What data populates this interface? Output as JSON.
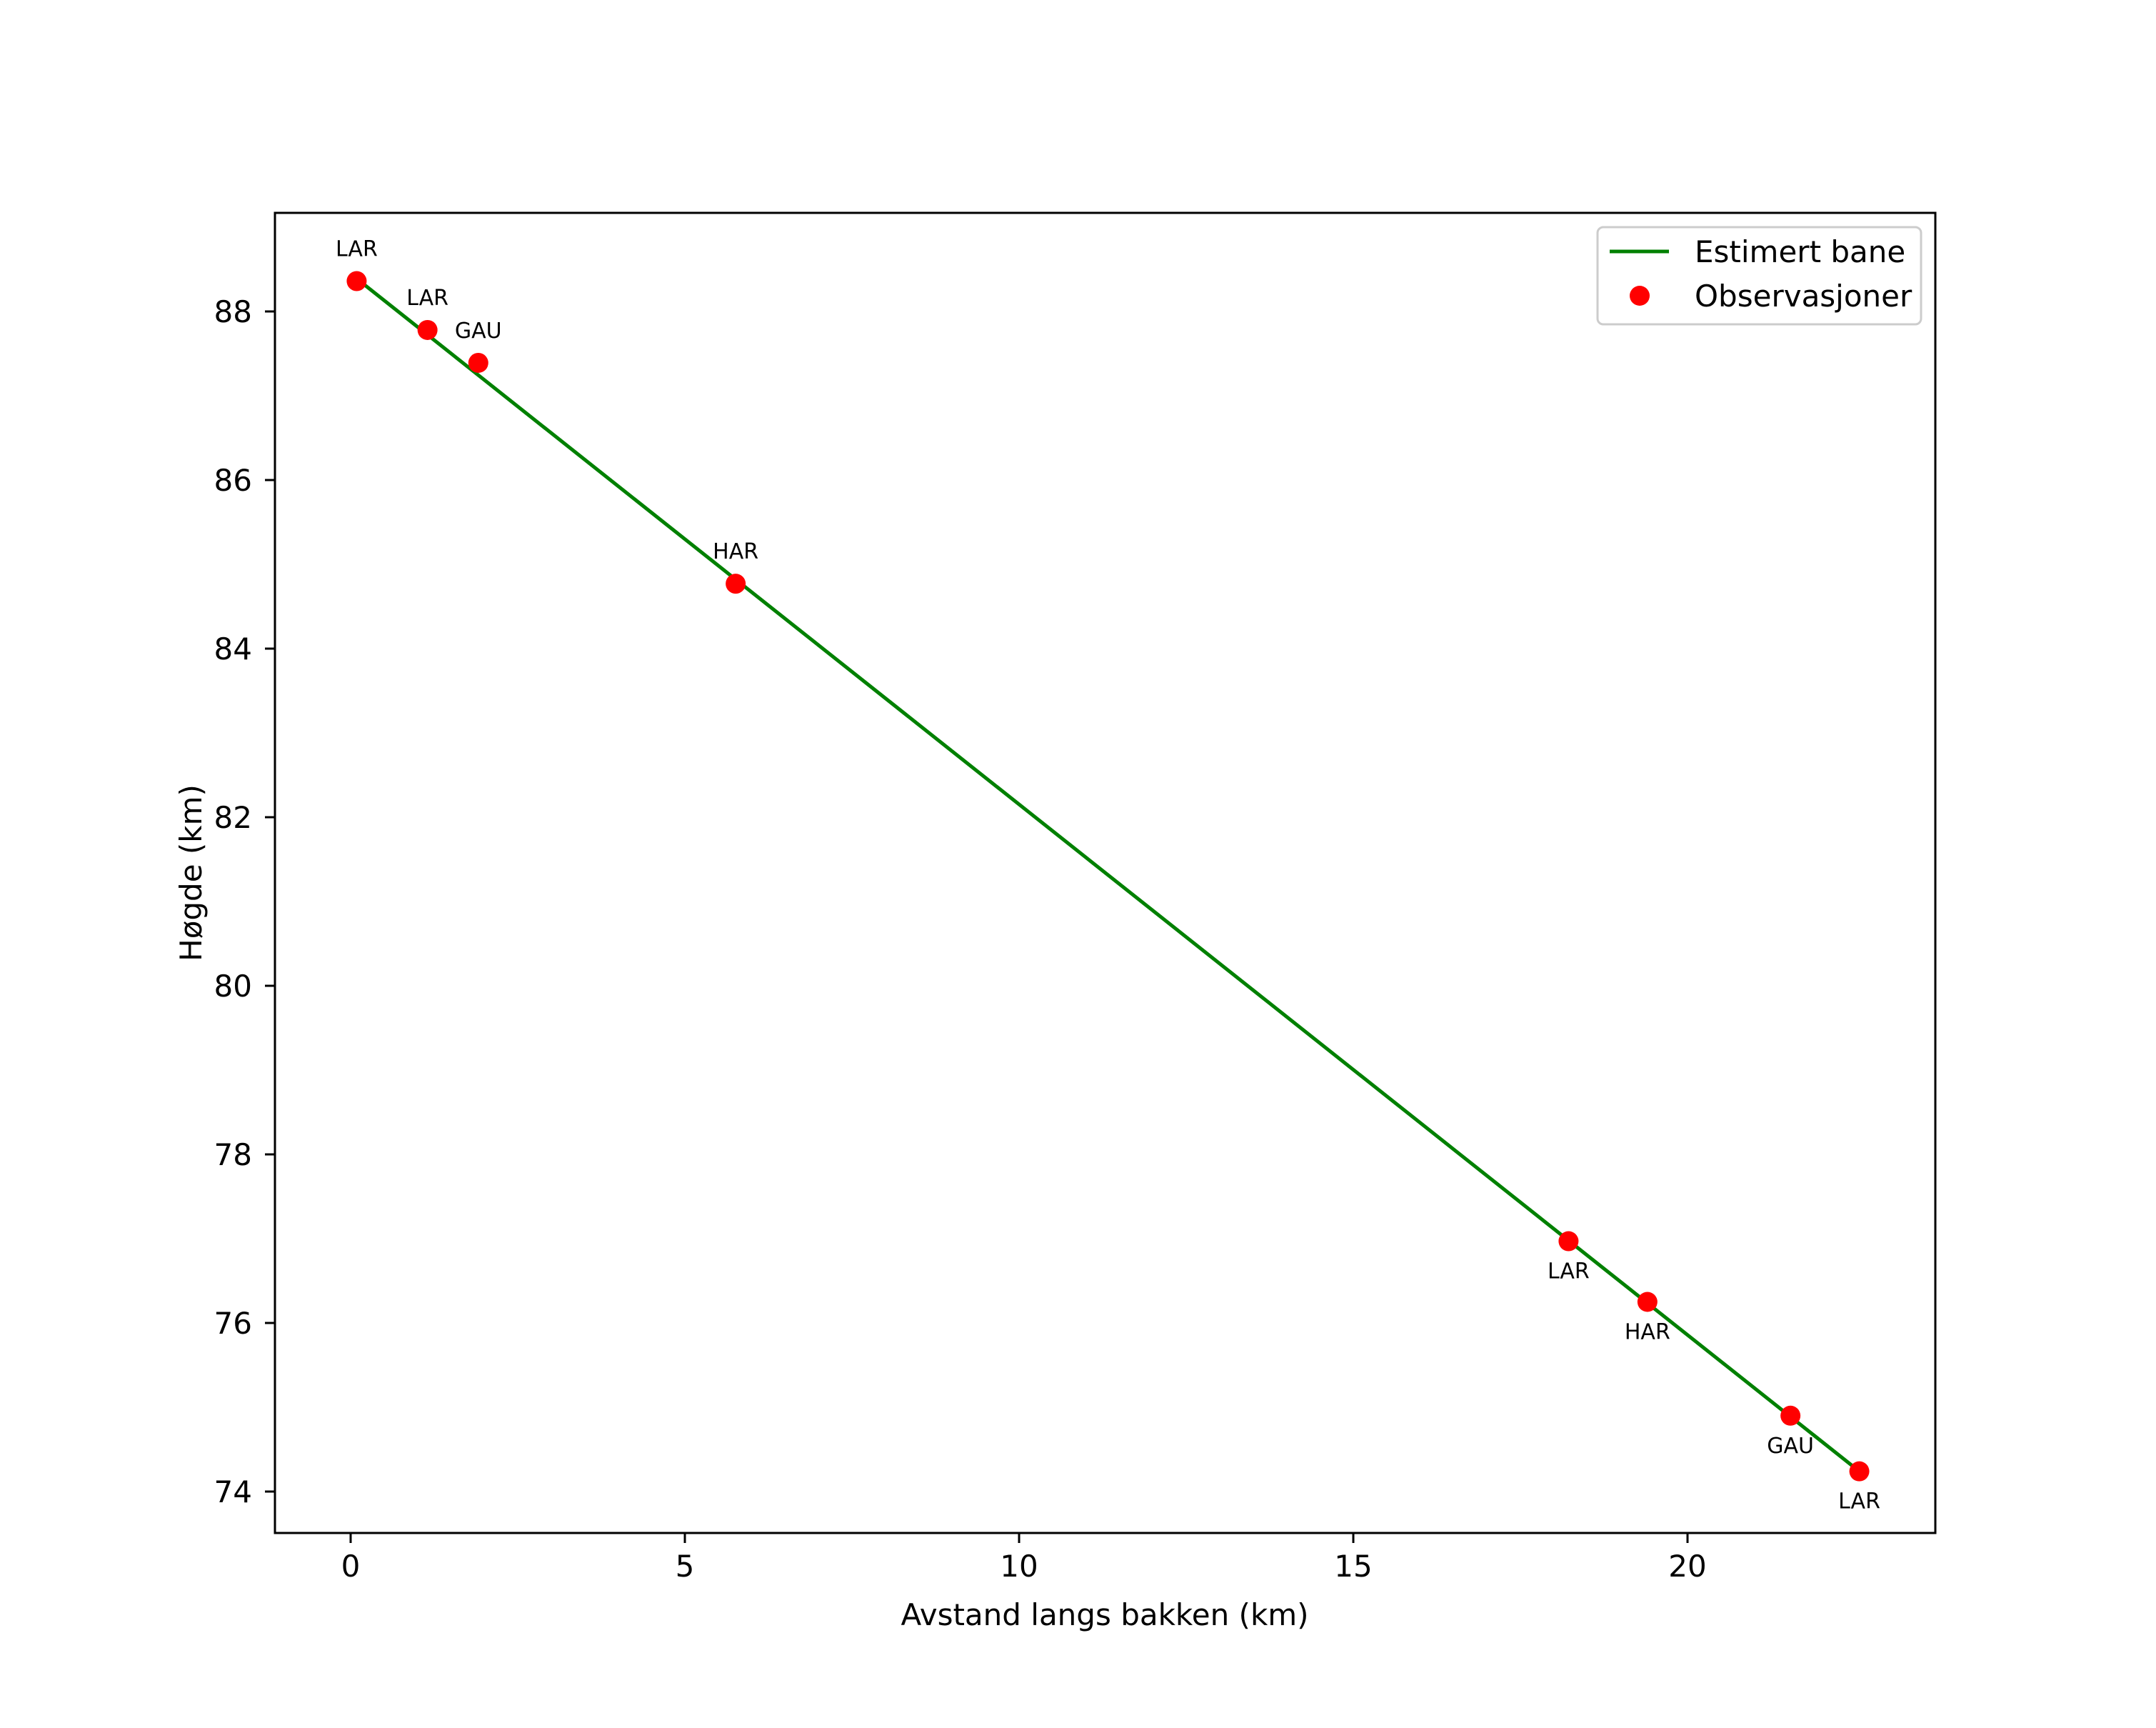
{
  "chart_data": {
    "type": "line",
    "title": "",
    "xlabel": "Avstand langs bakken (km)",
    "ylabel": "Høgde (km)",
    "xlim": [
      -1.13,
      23.71
    ],
    "ylim": [
      73.51,
      89.17
    ],
    "grid": false,
    "legend_position": "upper right",
    "x_ticks": [
      0,
      5,
      10,
      15,
      20
    ],
    "x_tick_labels": [
      "0",
      "5",
      "10",
      "15",
      "20"
    ],
    "y_ticks": [
      74,
      76,
      78,
      80,
      82,
      84,
      86,
      88
    ],
    "y_tick_labels": [
      "74",
      "76",
      "78",
      "80",
      "82",
      "84",
      "86",
      "88"
    ],
    "series": [
      {
        "name": "Estimert bane",
        "type": "line",
        "color": "#008000",
        "x": [
          0.09,
          22.57
        ],
        "y": [
          88.39,
          74.24
        ]
      },
      {
        "name": "Observasjoner",
        "type": "scatter",
        "color": "#ff0000",
        "points": [
          {
            "x": 0.09,
            "y": 88.36,
            "label": "LAR",
            "label_pos": "above"
          },
          {
            "x": 1.15,
            "y": 87.78,
            "label": "LAR",
            "label_pos": "above"
          },
          {
            "x": 1.91,
            "y": 87.39,
            "label": "GAU",
            "label_pos": "above"
          },
          {
            "x": 5.76,
            "y": 84.77,
            "label": "HAR",
            "label_pos": "above"
          },
          {
            "x": 18.22,
            "y": 76.97,
            "label": "LAR",
            "label_pos": "below"
          },
          {
            "x": 19.4,
            "y": 76.25,
            "label": "HAR",
            "label_pos": "below"
          },
          {
            "x": 21.54,
            "y": 74.9,
            "label": "GAU",
            "label_pos": "below"
          },
          {
            "x": 22.57,
            "y": 74.24,
            "label": "LAR",
            "label_pos": "below"
          }
        ]
      }
    ]
  },
  "legend": {
    "items": [
      {
        "label": "Estimert bane",
        "marker": "line",
        "color": "#008000"
      },
      {
        "label": "Observasjoner",
        "marker": "dot",
        "color": "#ff0000"
      }
    ]
  }
}
